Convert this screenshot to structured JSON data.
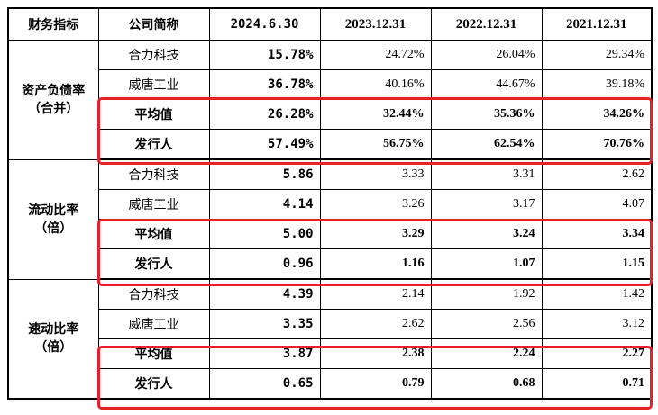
{
  "headers": [
    "财务指标",
    "公司简称",
    "2024.6.30",
    "2023.12.31",
    "2022.12.31",
    "2021.12.31"
  ],
  "groups": [
    {
      "label_line1": "资产负债率",
      "label_line2": "（合并）",
      "rows": [
        {
          "company": "合力科技",
          "v2024": "15.78%",
          "v2023": "24.72%",
          "v2022": "26.04%",
          "v2021": "29.34%"
        },
        {
          "company": "威唐工业",
          "v2024": "36.78%",
          "v2023": "40.16%",
          "v2022": "44.67%",
          "v2021": "39.18%"
        },
        {
          "company": "平均值",
          "v2024": "26.28%",
          "v2023": "32.44%",
          "v2022": "35.36%",
          "v2021": "34.26%"
        },
        {
          "company": "发行人",
          "v2024": "57.49%",
          "v2023": "56.75%",
          "v2022": "62.54%",
          "v2021": "70.76%"
        }
      ]
    },
    {
      "label_line1": "流动比率",
      "label_line2": "（倍）",
      "rows": [
        {
          "company": "合力科技",
          "v2024": "5.86",
          "v2023": "3.33",
          "v2022": "3.31",
          "v2021": "2.62"
        },
        {
          "company": "威唐工业",
          "v2024": "4.14",
          "v2023": "3.26",
          "v2022": "3.17",
          "v2021": "4.07"
        },
        {
          "company": "平均值",
          "v2024": "5.00",
          "v2023": "3.29",
          "v2022": "3.24",
          "v2021": "3.34"
        },
        {
          "company": "发行人",
          "v2024": "0.96",
          "v2023": "1.16",
          "v2022": "1.07",
          "v2021": "1.15"
        }
      ]
    },
    {
      "label_line1": "速动比率",
      "label_line2": "（倍）",
      "rows": [
        {
          "company": "合力科技",
          "v2024": "4.39",
          "v2023": "2.14",
          "v2022": "1.92",
          "v2021": "1.42"
        },
        {
          "company": "威唐工业",
          "v2024": "3.35",
          "v2023": "2.62",
          "v2022": "2.56",
          "v2021": "3.12"
        },
        {
          "company": "平均值",
          "v2024": "3.87",
          "v2023": "2.38",
          "v2022": "2.24",
          "v2021": "2.27"
        },
        {
          "company": "发行人",
          "v2024": "0.65",
          "v2023": "0.79",
          "v2022": "0.68",
          "v2021": "0.71"
        }
      ]
    }
  ],
  "highlight_color": "#e8202a"
}
